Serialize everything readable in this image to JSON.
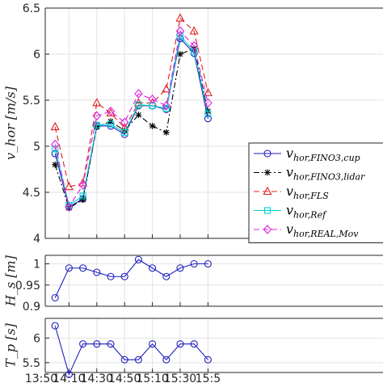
{
  "chart_data": [
    {
      "type": "line",
      "ylabel": "v_hor [m/s]",
      "ylim": [
        4,
        6.5
      ],
      "yticks": [
        "4",
        "4.5",
        "5",
        "5.5",
        "6",
        "6.5"
      ],
      "x": [
        "14:00",
        "14:10",
        "14:20",
        "14:30",
        "14:40",
        "14:50",
        "15:00",
        "15:10",
        "15:20",
        "15:30",
        "15:40",
        "15:50"
      ],
      "grid": true,
      "legend_position": "bottom-right",
      "series": [
        {
          "name": "v_hor,FINO3,cup",
          "color": "#1f1fbf",
          "marker": "circle",
          "values": [
            4.92,
            4.34,
            4.43,
            5.22,
            5.22,
            5.13,
            5.44,
            5.44,
            5.4,
            6.17,
            6.01,
            5.3
          ]
        },
        {
          "name": "v_hor,FINO3,lidar",
          "color": "#000000",
          "marker": "star",
          "values": [
            4.8,
            4.33,
            4.42,
            5.21,
            5.27,
            5.17,
            5.34,
            5.22,
            5.15,
            6.0,
            6.06,
            5.38
          ]
        },
        {
          "name": "v_hor,FLS",
          "color": "#e02020",
          "marker": "triangle",
          "values": [
            5.21,
            4.56,
            4.6,
            5.47,
            5.36,
            5.2,
            5.47,
            5.47,
            5.62,
            6.39,
            6.25,
            5.58
          ]
        },
        {
          "name": "v_hor,Ref",
          "color": "#00d0d0",
          "marker": "square",
          "values": [
            4.97,
            4.36,
            4.46,
            5.23,
            5.24,
            5.15,
            5.45,
            5.44,
            5.41,
            6.2,
            6.03,
            5.35
          ]
        },
        {
          "name": "v_hor,REAL,Mov",
          "color": "#e020e0",
          "marker": "diamond",
          "values": [
            5.02,
            4.34,
            4.58,
            5.33,
            5.38,
            5.26,
            5.57,
            5.51,
            5.44,
            6.25,
            6.09,
            5.47
          ]
        }
      ]
    },
    {
      "type": "line",
      "ylabel": "H_s [m]",
      "ylim": [
        0.9,
        1.02
      ],
      "yticks": [
        "0.9",
        "0.95",
        "1"
      ],
      "x": [
        "14:00",
        "14:10",
        "14:20",
        "14:30",
        "14:40",
        "14:50",
        "15:00",
        "15:10",
        "15:20",
        "15:30",
        "15:40",
        "15:50"
      ],
      "grid": true,
      "series": [
        {
          "color": "#1f1fbf",
          "marker": "circle",
          "values": [
            0.92,
            0.99,
            0.99,
            0.98,
            0.97,
            0.97,
            1.01,
            0.99,
            0.97,
            0.99,
            1.0,
            1.0
          ]
        }
      ]
    },
    {
      "type": "line",
      "ylabel": "T_p [s]",
      "ylim": [
        5.3,
        6.4
      ],
      "yticks": [
        "5.5",
        "6"
      ],
      "x": [
        "14:00",
        "14:10",
        "14:20",
        "14:30",
        "14:40",
        "14:50",
        "15:00",
        "15:10",
        "15:20",
        "15:30",
        "15:40",
        "15:50"
      ],
      "xticks": [
        "13:50",
        "14:10",
        "14:30",
        "14:50",
        "15:10",
        "15:30",
        "15:5"
      ],
      "grid": true,
      "series": [
        {
          "color": "#1f1fbf",
          "marker": "circle",
          "values": [
            6.25,
            5.26,
            5.88,
            5.88,
            5.88,
            5.56,
            5.56,
            5.88,
            5.56,
            5.88,
            5.88,
            5.56
          ]
        }
      ]
    }
  ]
}
